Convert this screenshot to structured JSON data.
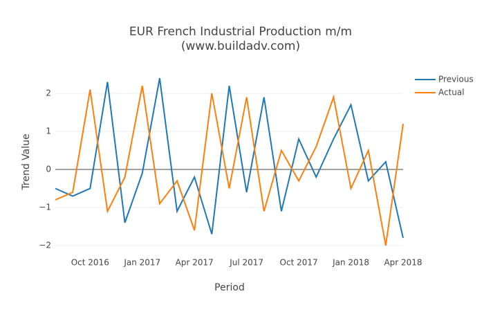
{
  "chart_data": {
    "type": "line",
    "title": "EUR French Industrial Production m/m",
    "subtitle": "(www.buildadv.com)",
    "x_label": "Period",
    "y_label": "Trend Value",
    "x": [
      "2016-08",
      "2016-09",
      "2016-10",
      "2016-11",
      "2016-12",
      "2017-01",
      "2017-02",
      "2017-03",
      "2017-04",
      "2017-05",
      "2017-06",
      "2017-07",
      "2017-08",
      "2017-09",
      "2017-10",
      "2017-11",
      "2017-12",
      "2018-01",
      "2018-02",
      "2018-03",
      "2018-04"
    ],
    "series": [
      {
        "name": "Previous",
        "color": "#1f77b4",
        "values": [
          -0.5,
          -0.7,
          -0.5,
          2.3,
          -1.4,
          -0.1,
          2.4,
          -1.1,
          -0.2,
          -1.7,
          2.2,
          -0.6,
          1.9,
          -1.1,
          0.8,
          -0.2,
          0.8,
          1.7,
          -0.3,
          0.2,
          -1.8
        ]
      },
      {
        "name": "Actual",
        "color": "#ff7f0e",
        "values": [
          -0.8,
          -0.6,
          2.1,
          -1.1,
          -0.2,
          2.2,
          -0.9,
          -0.3,
          -1.6,
          2.0,
          -0.5,
          1.9,
          -1.1,
          0.5,
          -0.3,
          0.6,
          1.9,
          -0.5,
          0.5,
          -2.0,
          1.2
        ]
      }
    ],
    "xlim": [
      "2016-08",
      "2018-04"
    ],
    "xticks": [
      {
        "value": "2016-10",
        "label": "Oct 2016"
      },
      {
        "value": "2017-01",
        "label": "Jan 2017"
      },
      {
        "value": "2017-04",
        "label": "Apr 2017"
      },
      {
        "value": "2017-07",
        "label": "Jul 2017"
      },
      {
        "value": "2017-10",
        "label": "Oct 2017"
      },
      {
        "value": "2018-01",
        "label": "Jan 2018"
      },
      {
        "value": "2018-04",
        "label": "Apr 2018"
      }
    ],
    "ylim": [
      -2.2,
      2.6
    ],
    "yticks": [
      {
        "value": -2,
        "label": "−2"
      },
      {
        "value": -1,
        "label": "−1"
      },
      0,
      1,
      2
    ],
    "grid": true,
    "legend": "top-right"
  }
}
